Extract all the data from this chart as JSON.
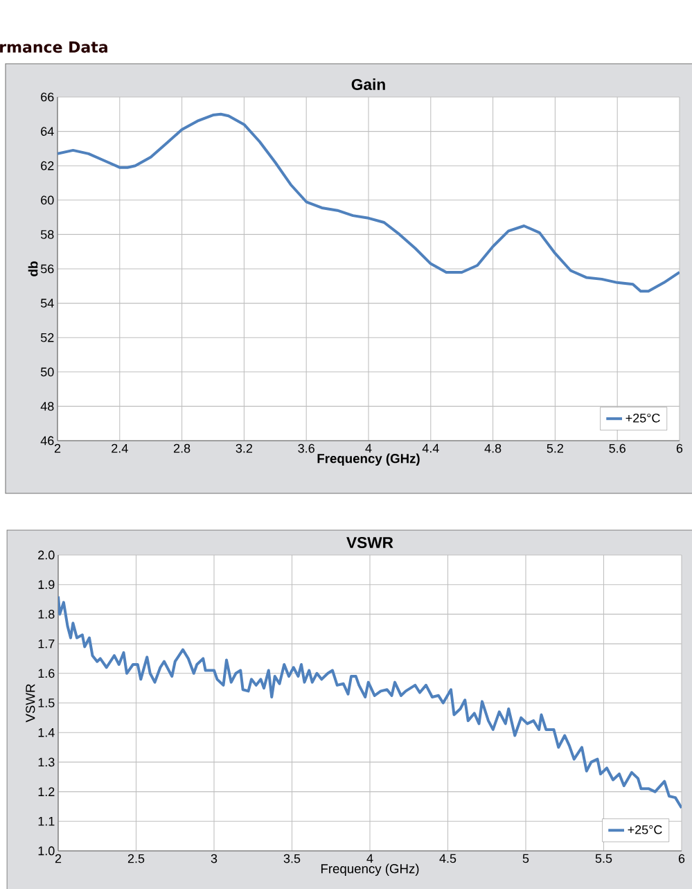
{
  "chart_data": [
    {
      "type": "line",
      "title": "Gain",
      "xlabel": "Frequency (GHz)",
      "ylabel": "db",
      "annotations": [
        "rmance Data"
      ],
      "xlim": [
        2,
        6
      ],
      "xticks": [
        2,
        2.4,
        2.8,
        3.2,
        3.6,
        4,
        4.4,
        4.8,
        5.2,
        5.6,
        6
      ],
      "ylim": [
        46,
        66
      ],
      "yticks": [
        46,
        48,
        50,
        52,
        54,
        56,
        58,
        60,
        62,
        64,
        66
      ],
      "grid": true,
      "legend": "bottom right",
      "marker": "none",
      "line_style": "solid",
      "series": [
        {
          "name": "+25°C",
          "color": "#4f81bd",
          "x": [
            2.0,
            2.1,
            2.2,
            2.3,
            2.4,
            2.45,
            2.5,
            2.6,
            2.7,
            2.8,
            2.9,
            3.0,
            3.05,
            3.1,
            3.2,
            3.3,
            3.4,
            3.5,
            3.6,
            3.7,
            3.8,
            3.9,
            4.0,
            4.1,
            4.2,
            4.3,
            4.4,
            4.5,
            4.6,
            4.7,
            4.8,
            4.9,
            5.0,
            5.1,
            5.2,
            5.3,
            5.4,
            5.5,
            5.6,
            5.7,
            5.75,
            5.8,
            5.9,
            6.0
          ],
          "values": [
            62.7,
            62.9,
            62.7,
            62.3,
            61.9,
            61.9,
            62.0,
            62.5,
            63.3,
            64.1,
            64.6,
            64.95,
            65.0,
            64.9,
            64.4,
            63.4,
            62.2,
            60.9,
            59.9,
            59.55,
            59.4,
            59.1,
            58.95,
            58.7,
            58.0,
            57.2,
            56.3,
            55.8,
            55.8,
            56.2,
            57.3,
            58.2,
            58.5,
            58.1,
            56.9,
            55.9,
            55.5,
            55.4,
            55.2,
            55.1,
            54.7,
            54.7,
            55.2,
            55.8
          ]
        }
      ]
    },
    {
      "type": "line",
      "title": "VSWR",
      "xlabel": "Frequency (GHz)",
      "ylabel": "VSWR",
      "xlim": [
        2,
        6
      ],
      "xticks": [
        2,
        2.5,
        3,
        3.5,
        4,
        4.5,
        5,
        5.5,
        6
      ],
      "ylim": [
        1.0,
        2.0
      ],
      "yticks": [
        {
          "value": 1.0,
          "label": "1.0"
        },
        1.1,
        1.2,
        1.3,
        1.4,
        1.5,
        1.6,
        1.7,
        1.8,
        1.9,
        {
          "value": 2.0,
          "label": "2.0"
        }
      ],
      "grid": true,
      "legend": "bottom right",
      "marker": "none",
      "line_style": "solid",
      "series": [
        {
          "name": "+25°C",
          "color": "#4f81bd",
          "x": [
            2.0,
            2.01,
            2.035,
            2.06,
            2.08,
            2.095,
            2.12,
            2.155,
            2.17,
            2.2,
            2.22,
            2.25,
            2.27,
            2.31,
            2.36,
            2.39,
            2.42,
            2.44,
            2.48,
            2.51,
            2.53,
            2.57,
            2.59,
            2.62,
            2.655,
            2.68,
            2.73,
            2.75,
            2.8,
            2.835,
            2.87,
            2.89,
            2.93,
            2.945,
            3.0,
            3.02,
            3.06,
            3.08,
            3.11,
            3.14,
            3.17,
            3.185,
            3.22,
            3.24,
            3.27,
            3.3,
            3.32,
            3.35,
            3.37,
            3.39,
            3.42,
            3.45,
            3.48,
            3.51,
            3.54,
            3.56,
            3.58,
            3.61,
            3.63,
            3.66,
            3.69,
            3.73,
            3.76,
            3.79,
            3.83,
            3.86,
            3.88,
            3.91,
            3.93,
            3.97,
            3.99,
            4.03,
            4.07,
            4.11,
            4.14,
            4.16,
            4.2,
            4.23,
            4.29,
            4.32,
            4.36,
            4.4,
            4.44,
            4.47,
            4.52,
            4.54,
            4.58,
            4.61,
            4.63,
            4.67,
            4.7,
            4.72,
            4.76,
            4.79,
            4.83,
            4.87,
            4.89,
            4.93,
            4.97,
            5.01,
            5.05,
            5.085,
            5.1,
            5.13,
            5.18,
            5.21,
            5.25,
            5.28,
            5.31,
            5.36,
            5.39,
            5.42,
            5.46,
            5.48,
            5.52,
            5.56,
            5.6,
            5.63,
            5.68,
            5.72,
            5.74,
            5.79,
            5.83,
            5.89,
            5.92,
            5.96,
            6.0
          ],
          "values": [
            1.86,
            1.8,
            1.84,
            1.76,
            1.72,
            1.77,
            1.72,
            1.73,
            1.69,
            1.72,
            1.66,
            1.64,
            1.65,
            1.62,
            1.66,
            1.63,
            1.67,
            1.6,
            1.63,
            1.63,
            1.58,
            1.655,
            1.6,
            1.57,
            1.62,
            1.64,
            1.59,
            1.64,
            1.68,
            1.65,
            1.6,
            1.63,
            1.65,
            1.61,
            1.61,
            1.58,
            1.56,
            1.645,
            1.57,
            1.6,
            1.61,
            1.545,
            1.54,
            1.58,
            1.56,
            1.58,
            1.55,
            1.61,
            1.52,
            1.59,
            1.565,
            1.63,
            1.59,
            1.62,
            1.59,
            1.63,
            1.57,
            1.61,
            1.57,
            1.6,
            1.58,
            1.6,
            1.61,
            1.56,
            1.565,
            1.53,
            1.59,
            1.59,
            1.56,
            1.52,
            1.57,
            1.525,
            1.54,
            1.545,
            1.525,
            1.57,
            1.525,
            1.54,
            1.56,
            1.535,
            1.56,
            1.52,
            1.525,
            1.5,
            1.545,
            1.46,
            1.48,
            1.51,
            1.44,
            1.465,
            1.43,
            1.505,
            1.44,
            1.41,
            1.47,
            1.43,
            1.48,
            1.39,
            1.45,
            1.43,
            1.44,
            1.41,
            1.46,
            1.41,
            1.41,
            1.35,
            1.39,
            1.355,
            1.31,
            1.35,
            1.27,
            1.3,
            1.31,
            1.26,
            1.28,
            1.24,
            1.26,
            1.22,
            1.265,
            1.245,
            1.21,
            1.21,
            1.2,
            1.235,
            1.185,
            1.18,
            1.145
          ]
        }
      ]
    }
  ]
}
